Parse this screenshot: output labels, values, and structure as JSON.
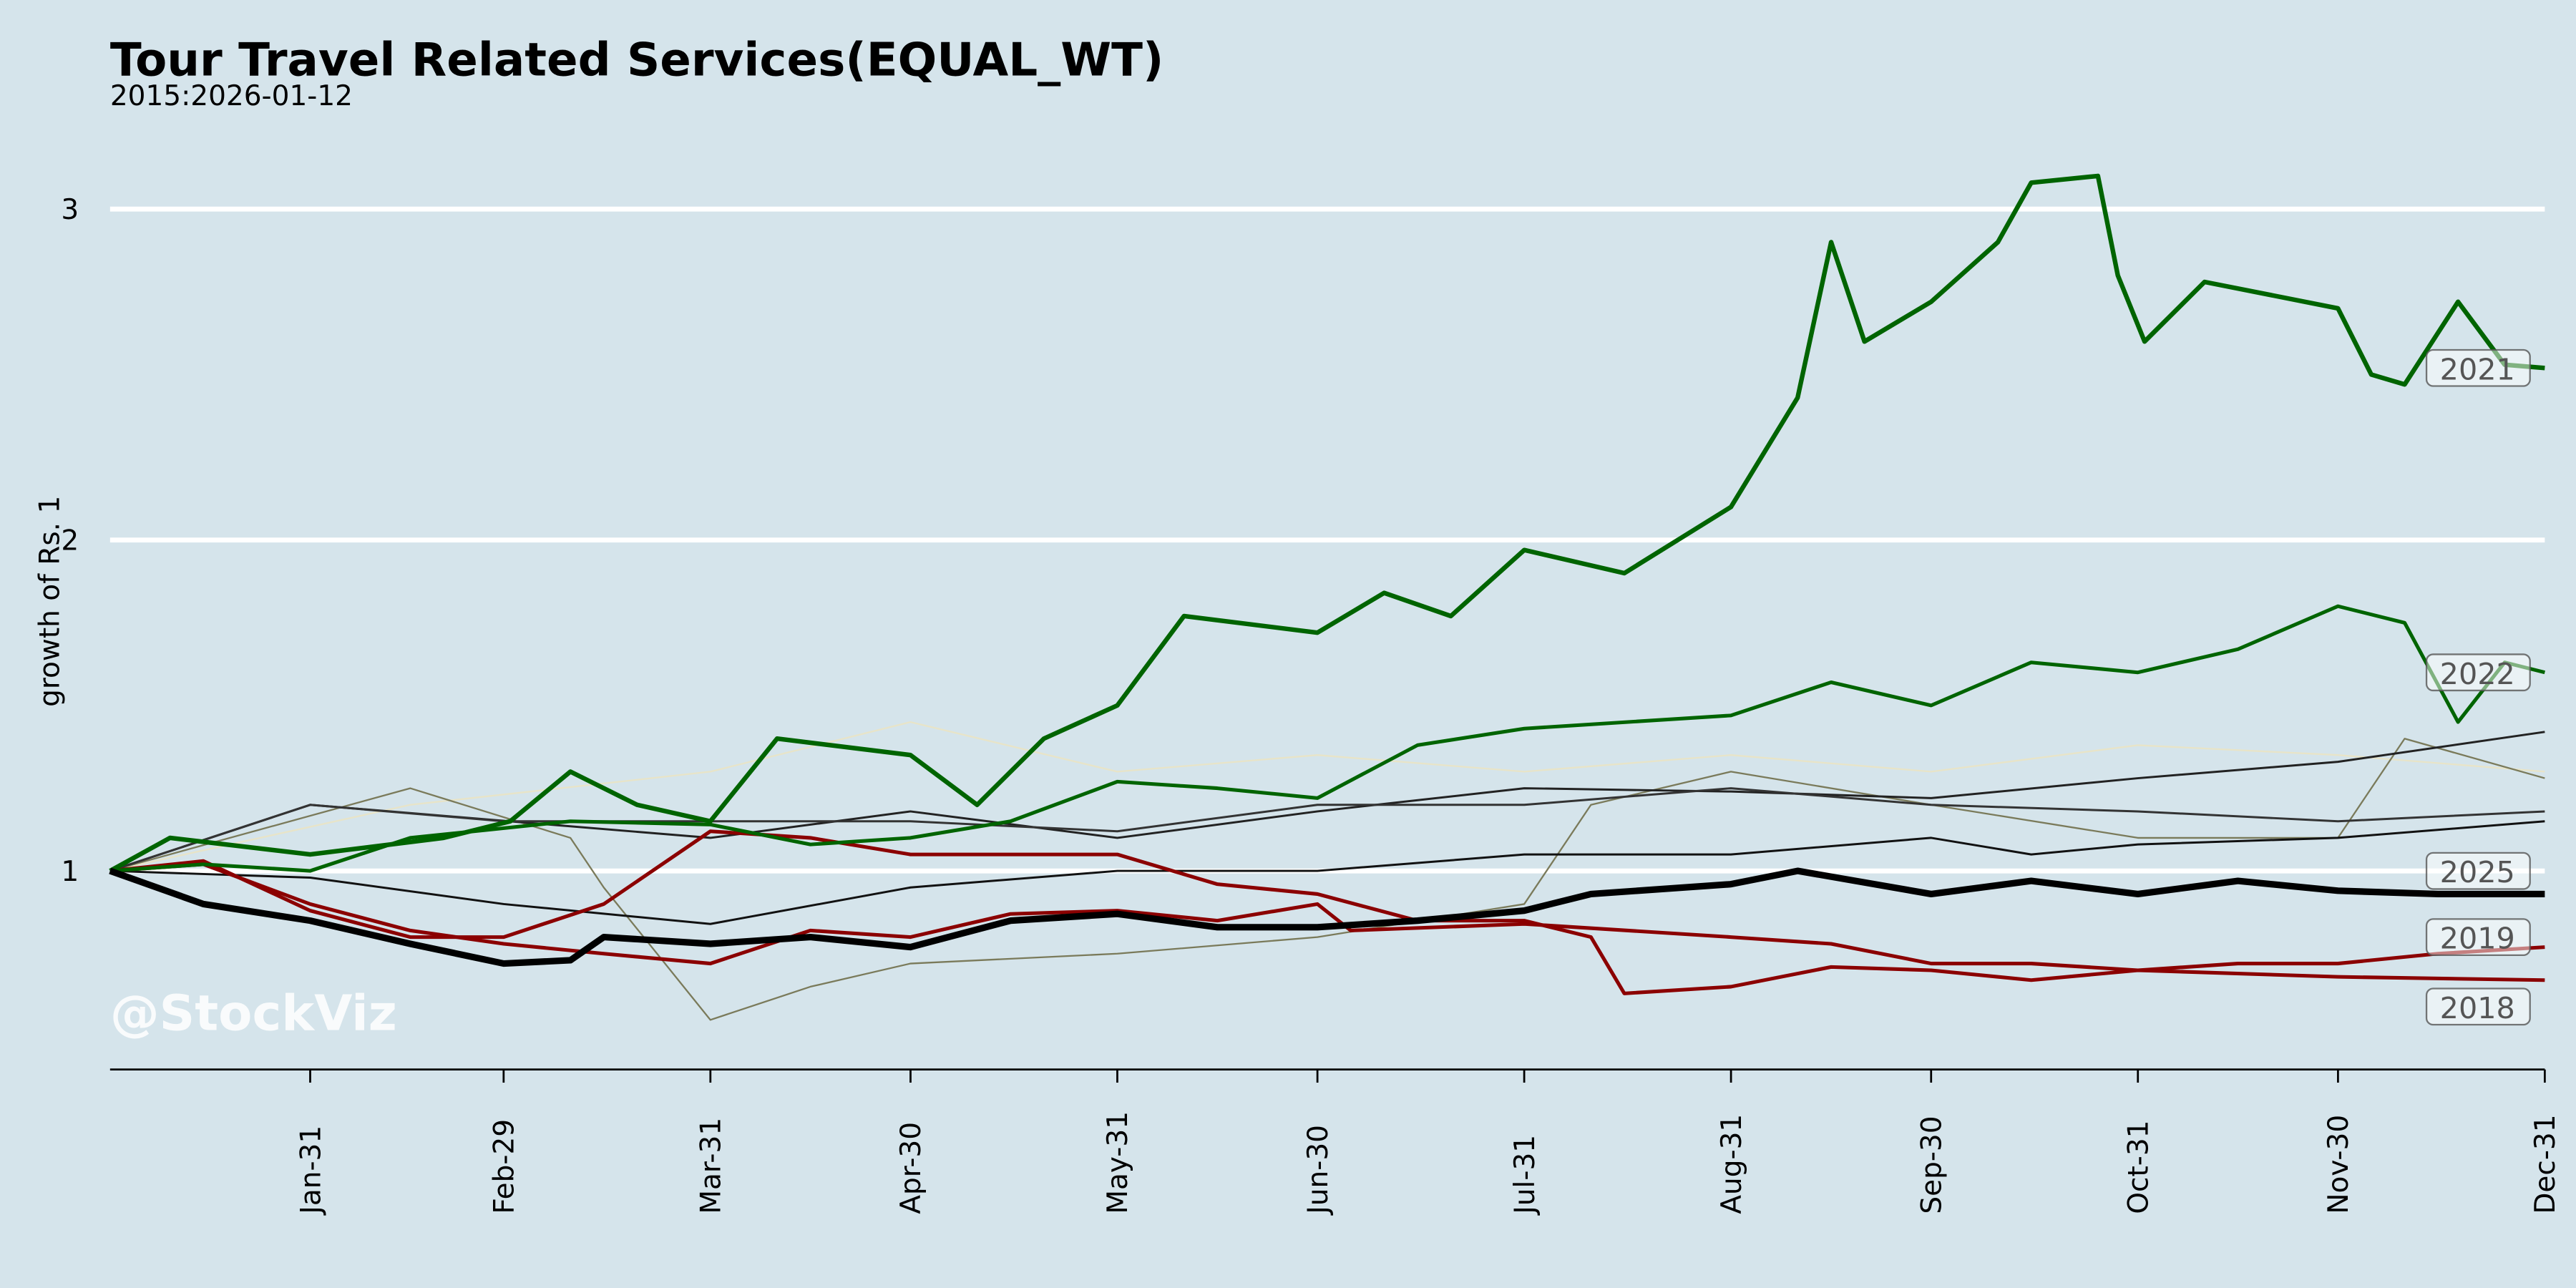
{
  "chart_data": {
    "type": "line",
    "title": "Tour Travel Related Services(EQUAL_WT)",
    "subtitle": "2015:2026-01-12",
    "ylabel": "growth of Rs. 1",
    "xlabel": "",
    "watermark": "@StockViz",
    "ylim": [
      0.4,
      3.2
    ],
    "yticks": [
      1,
      2,
      3
    ],
    "xticks": [
      {
        "label": "Jan-31",
        "date": "01-31"
      },
      {
        "label": "Feb-29",
        "date": "02-29"
      },
      {
        "label": "Mar-31",
        "date": "03-31"
      },
      {
        "label": "Apr-30",
        "date": "04-30"
      },
      {
        "label": "May-31",
        "date": "05-31"
      },
      {
        "label": "Jun-30",
        "date": "06-30"
      },
      {
        "label": "Jul-31",
        "date": "07-31"
      },
      {
        "label": "Aug-31",
        "date": "08-31"
      },
      {
        "label": "Sep-30",
        "date": "09-30"
      },
      {
        "label": "Oct-31",
        "date": "10-31"
      },
      {
        "label": "Nov-30",
        "date": "11-30"
      },
      {
        "label": "Dec-31",
        "date": "12-31"
      }
    ],
    "grid": "horizontal",
    "background": "#d5e4eb",
    "series": [
      {
        "name": "",
        "color": "#e8e4c8",
        "width": 1,
        "points": [
          [
            "01-01",
            1.0
          ],
          [
            "02-15",
            1.2
          ],
          [
            "03-31",
            1.3
          ],
          [
            "04-30",
            1.45
          ],
          [
            "05-31",
            1.3
          ],
          [
            "06-30",
            1.35
          ],
          [
            "07-31",
            1.3
          ],
          [
            "08-31",
            1.35
          ],
          [
            "09-30",
            1.3
          ],
          [
            "10-31",
            1.38
          ],
          [
            "11-30",
            1.35
          ],
          [
            "12-31",
            1.3
          ]
        ]
      },
      {
        "name": "",
        "color": "#7a7a5a",
        "width": 1,
        "points": [
          [
            "01-01",
            1.0
          ],
          [
            "02-15",
            1.25
          ],
          [
            "03-10",
            1.1
          ],
          [
            "03-15",
            0.95
          ],
          [
            "03-31",
            0.55
          ],
          [
            "04-15",
            0.65
          ],
          [
            "04-30",
            0.72
          ],
          [
            "05-31",
            0.75
          ],
          [
            "06-30",
            0.8
          ],
          [
            "07-31",
            0.9
          ],
          [
            "08-10",
            1.2
          ],
          [
            "08-31",
            1.3
          ],
          [
            "09-30",
            1.2
          ],
          [
            "10-31",
            1.1
          ],
          [
            "11-30",
            1.1
          ],
          [
            "12-10",
            1.4
          ],
          [
            "12-31",
            1.28
          ]
        ]
      },
      {
        "name": "",
        "color": "#222222",
        "width": 1.3,
        "points": [
          [
            "01-01",
            1.0
          ],
          [
            "01-31",
            1.2
          ],
          [
            "03-31",
            1.1
          ],
          [
            "04-30",
            1.18
          ],
          [
            "05-31",
            1.1
          ],
          [
            "06-30",
            1.18
          ],
          [
            "07-31",
            1.25
          ],
          [
            "08-31",
            1.24
          ],
          [
            "09-30",
            1.22
          ],
          [
            "10-31",
            1.28
          ],
          [
            "11-30",
            1.33
          ],
          [
            "12-31",
            1.42
          ]
        ]
      },
      {
        "name": "",
        "color": "#111111",
        "width": 1.3,
        "points": [
          [
            "01-01",
            1.0
          ],
          [
            "01-31",
            0.98
          ],
          [
            "02-29",
            0.9
          ],
          [
            "03-31",
            0.84
          ],
          [
            "04-30",
            0.95
          ],
          [
            "05-31",
            1.0
          ],
          [
            "06-30",
            1.0
          ],
          [
            "07-31",
            1.05
          ],
          [
            "08-31",
            1.05
          ],
          [
            "09-30",
            1.1
          ],
          [
            "10-15",
            1.05
          ],
          [
            "10-31",
            1.08
          ],
          [
            "11-30",
            1.1
          ],
          [
            "12-31",
            1.15
          ]
        ]
      },
      {
        "name": "",
        "color": "#333333",
        "width": 1.3,
        "points": [
          [
            "01-01",
            1.0
          ],
          [
            "01-31",
            1.2
          ],
          [
            "02-29",
            1.15
          ],
          [
            "03-31",
            1.15
          ],
          [
            "04-30",
            1.15
          ],
          [
            "05-31",
            1.12
          ],
          [
            "06-30",
            1.2
          ],
          [
            "07-31",
            1.2
          ],
          [
            "08-31",
            1.25
          ],
          [
            "09-30",
            1.2
          ],
          [
            "10-31",
            1.18
          ],
          [
            "11-30",
            1.15
          ],
          [
            "12-31",
            1.18
          ]
        ]
      },
      {
        "name": "2018",
        "color": "#8b0000",
        "width": 2.2,
        "points": [
          [
            "01-01",
            1.0
          ],
          [
            "01-15",
            1.03
          ],
          [
            "01-31",
            0.88
          ],
          [
            "02-15",
            0.8
          ],
          [
            "02-29",
            0.8
          ],
          [
            "03-15",
            0.9
          ],
          [
            "03-31",
            1.12
          ],
          [
            "04-15",
            1.1
          ],
          [
            "04-30",
            1.05
          ],
          [
            "05-15",
            1.05
          ],
          [
            "05-31",
            1.05
          ],
          [
            "06-15",
            0.96
          ],
          [
            "06-30",
            0.93
          ],
          [
            "07-15",
            0.85
          ],
          [
            "07-31",
            0.85
          ],
          [
            "08-10",
            0.8
          ],
          [
            "08-15",
            0.63
          ],
          [
            "08-31",
            0.65
          ],
          [
            "09-15",
            0.71
          ],
          [
            "09-30",
            0.7
          ],
          [
            "10-15",
            0.67
          ],
          [
            "10-31",
            0.7
          ],
          [
            "11-30",
            0.68
          ],
          [
            "12-31",
            0.67
          ]
        ]
      },
      {
        "name": "2019",
        "color": "#8b0000",
        "width": 2.2,
        "points": [
          [
            "01-01",
            1.0
          ],
          [
            "01-15",
            1.02
          ],
          [
            "01-31",
            0.9
          ],
          [
            "02-15",
            0.82
          ],
          [
            "02-29",
            0.78
          ],
          [
            "03-15",
            0.75
          ],
          [
            "03-31",
            0.72
          ],
          [
            "04-15",
            0.82
          ],
          [
            "04-30",
            0.8
          ],
          [
            "05-15",
            0.87
          ],
          [
            "05-31",
            0.88
          ],
          [
            "06-15",
            0.85
          ],
          [
            "06-30",
            0.9
          ],
          [
            "07-05",
            0.82
          ],
          [
            "07-31",
            0.84
          ],
          [
            "08-31",
            0.8
          ],
          [
            "09-15",
            0.78
          ],
          [
            "09-30",
            0.72
          ],
          [
            "10-15",
            0.72
          ],
          [
            "10-31",
            0.7
          ],
          [
            "11-15",
            0.72
          ],
          [
            "11-30",
            0.72
          ],
          [
            "12-15",
            0.75
          ],
          [
            "12-31",
            0.77
          ]
        ]
      },
      {
        "name": "2022",
        "color": "#006400",
        "width": 2.2,
        "points": [
          [
            "01-01",
            1.0
          ],
          [
            "01-15",
            1.02
          ],
          [
            "01-31",
            1.0
          ],
          [
            "02-15",
            1.1
          ],
          [
            "03-10",
            1.15
          ],
          [
            "03-31",
            1.14
          ],
          [
            "04-15",
            1.08
          ],
          [
            "04-30",
            1.1
          ],
          [
            "05-15",
            1.15
          ],
          [
            "05-31",
            1.27
          ],
          [
            "06-15",
            1.25
          ],
          [
            "06-30",
            1.22
          ],
          [
            "07-15",
            1.38
          ],
          [
            "07-31",
            1.43
          ],
          [
            "08-31",
            1.47
          ],
          [
            "09-15",
            1.57
          ],
          [
            "09-30",
            1.5
          ],
          [
            "10-15",
            1.63
          ],
          [
            "10-31",
            1.6
          ],
          [
            "11-15",
            1.67
          ],
          [
            "11-30",
            1.8
          ],
          [
            "12-10",
            1.75
          ],
          [
            "12-18",
            1.45
          ],
          [
            "12-25",
            1.63
          ],
          [
            "12-31",
            1.6
          ]
        ]
      },
      {
        "name": "2021",
        "color": "#006400",
        "width": 2.8,
        "points": [
          [
            "01-01",
            1.0
          ],
          [
            "01-10",
            1.1
          ],
          [
            "01-31",
            1.05
          ],
          [
            "02-20",
            1.1
          ],
          [
            "03-01",
            1.15
          ],
          [
            "03-10",
            1.3
          ],
          [
            "03-20",
            1.2
          ],
          [
            "03-31",
            1.15
          ],
          [
            "04-10",
            1.4
          ],
          [
            "04-30",
            1.35
          ],
          [
            "05-10",
            1.2
          ],
          [
            "05-20",
            1.4
          ],
          [
            "05-31",
            1.5
          ],
          [
            "06-10",
            1.77
          ],
          [
            "06-30",
            1.72
          ],
          [
            "07-10",
            1.84
          ],
          [
            "07-20",
            1.77
          ],
          [
            "07-31",
            1.97
          ],
          [
            "08-15",
            1.9
          ],
          [
            "08-31",
            2.1
          ],
          [
            "09-10",
            2.43
          ],
          [
            "09-15",
            2.9
          ],
          [
            "09-20",
            2.6
          ],
          [
            "09-30",
            2.72
          ],
          [
            "10-10",
            2.9
          ],
          [
            "10-15",
            3.08
          ],
          [
            "10-25",
            3.1
          ],
          [
            "10-28",
            2.8
          ],
          [
            "11-01",
            2.6
          ],
          [
            "11-10",
            2.78
          ],
          [
            "11-30",
            2.7
          ],
          [
            "12-05",
            2.5
          ],
          [
            "12-10",
            2.47
          ],
          [
            "12-18",
            2.72
          ],
          [
            "12-25",
            2.53
          ],
          [
            "12-31",
            2.52
          ]
        ]
      },
      {
        "name": "2025",
        "color": "#000000",
        "width": 4,
        "points": [
          [
            "01-01",
            1.0
          ],
          [
            "01-15",
            0.9
          ],
          [
            "01-31",
            0.85
          ],
          [
            "02-15",
            0.78
          ],
          [
            "02-29",
            0.72
          ],
          [
            "03-10",
            0.73
          ],
          [
            "03-15",
            0.8
          ],
          [
            "03-31",
            0.78
          ],
          [
            "04-15",
            0.8
          ],
          [
            "04-30",
            0.77
          ],
          [
            "05-15",
            0.85
          ],
          [
            "05-31",
            0.87
          ],
          [
            "06-15",
            0.83
          ],
          [
            "06-30",
            0.83
          ],
          [
            "07-15",
            0.85
          ],
          [
            "07-31",
            0.88
          ],
          [
            "08-10",
            0.93
          ],
          [
            "08-31",
            0.96
          ],
          [
            "09-10",
            1.0
          ],
          [
            "09-30",
            0.93
          ],
          [
            "10-15",
            0.97
          ],
          [
            "10-31",
            0.93
          ],
          [
            "11-15",
            0.97
          ],
          [
            "11-30",
            0.94
          ],
          [
            "12-15",
            0.93
          ],
          [
            "12-31",
            0.93
          ]
        ]
      }
    ]
  }
}
